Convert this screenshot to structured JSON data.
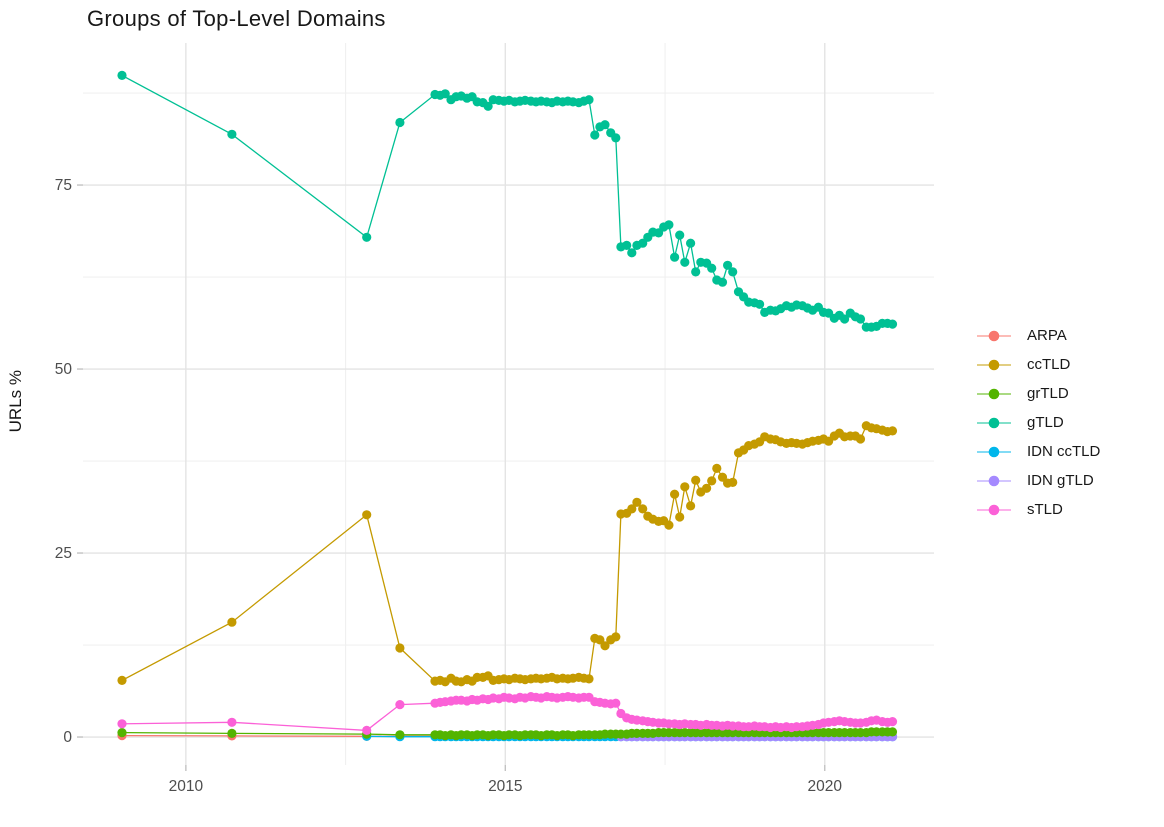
{
  "chart_data": {
    "type": "line",
    "title": "Groups of Top-Level Domains",
    "xlabel": "",
    "ylabel": "URLs %",
    "legend_position": "right",
    "grid": true,
    "xlim": [
      2008.39,
      2021.71
    ],
    "ylim": [
      -3.8,
      94.3
    ],
    "xticks": [
      2010,
      2015,
      2020
    ],
    "yticks": [
      0,
      25,
      50,
      75
    ],
    "x_minor": [
      2012.5,
      2017.5
    ],
    "y_minor": [
      12.5,
      37.5,
      62.5,
      87.5
    ],
    "x": [
      2009.0,
      2010.72,
      2012.83,
      2013.35,
      2013.9,
      2013.98,
      2014.06,
      2014.15,
      2014.23,
      2014.31,
      2014.4,
      2014.48,
      2014.56,
      2014.65,
      2014.73,
      2014.81,
      2014.9,
      2014.98,
      2015.06,
      2015.15,
      2015.23,
      2015.31,
      2015.4,
      2015.48,
      2015.56,
      2015.65,
      2015.73,
      2015.81,
      2015.9,
      2015.98,
      2016.06,
      2016.15,
      2016.23,
      2016.31,
      2016.4,
      2016.48,
      2016.56,
      2016.65,
      2016.73,
      2016.81,
      2016.9,
      2016.98,
      2017.06,
      2017.15,
      2017.23,
      2017.31,
      2017.4,
      2017.48,
      2017.56,
      2017.65,
      2017.73,
      2017.81,
      2017.9,
      2017.98,
      2018.06,
      2018.15,
      2018.23,
      2018.31,
      2018.4,
      2018.48,
      2018.56,
      2018.65,
      2018.73,
      2018.81,
      2018.9,
      2018.98,
      2019.06,
      2019.15,
      2019.23,
      2019.31,
      2019.4,
      2019.48,
      2019.56,
      2019.65,
      2019.73,
      2019.81,
      2019.9,
      2019.98,
      2020.06,
      2020.15,
      2020.23,
      2020.31,
      2020.4,
      2020.48,
      2020.56,
      2020.65,
      2020.73,
      2020.81,
      2020.9,
      2020.98,
      2021.06
    ],
    "series": [
      {
        "name": "ARPA",
        "color": "#F8766D",
        "values": [
          0.2,
          0.15,
          0.1,
          0.1,
          0.1,
          0.1,
          0.1,
          0.1,
          0.1,
          0.1,
          0.1,
          0.1,
          0.1,
          0.1,
          0.1,
          0.1,
          0.1,
          0.1,
          0.1,
          0.1,
          0.1,
          0.1,
          0.1,
          0.1,
          0.1,
          0.1,
          0.1,
          0.1,
          0.1,
          0.1,
          0.1,
          0.1,
          0.1,
          0.1,
          0.1,
          0.1,
          0.1,
          0.1,
          0.1,
          0.1,
          0.1,
          0.1,
          0.1,
          0.1,
          0.1,
          0.1,
          0.1,
          0.1,
          0.1,
          0.1,
          0.1,
          0.1,
          0.1,
          0.1,
          0.1,
          0.1,
          0.1,
          0.1,
          0.1,
          0.1,
          0.1,
          0.1,
          0.1,
          0.1,
          0.1,
          0.1,
          0.1,
          0.1,
          0.1,
          0.1,
          0.1,
          0.1,
          0.1,
          0.1,
          0.1,
          0.1,
          0.1,
          0.1,
          0.1,
          0.1,
          0.1,
          0.1,
          0.1,
          0.1,
          0.1,
          0.1,
          0.1,
          0.1,
          0.1,
          0.1,
          0.1
        ]
      },
      {
        "name": "ccTLD",
        "color": "#C49A00",
        "values": [
          7.7,
          15.6,
          30.2,
          12.1,
          7.6,
          7.7,
          7.5,
          8.0,
          7.6,
          7.5,
          7.8,
          7.6,
          8.1,
          8.1,
          8.3,
          7.7,
          7.8,
          7.9,
          7.8,
          8.0,
          7.9,
          7.8,
          7.9,
          8.0,
          7.9,
          8.0,
          8.1,
          7.9,
          8.0,
          7.9,
          8.0,
          8.1,
          8.0,
          7.9,
          13.4,
          13.2,
          12.4,
          13.2,
          13.6,
          30.3,
          30.4,
          31.0,
          31.9,
          31.0,
          30.0,
          29.6,
          29.3,
          29.4,
          28.8,
          33.0,
          29.9,
          34.0,
          31.4,
          34.9,
          33.3,
          33.8,
          34.8,
          36.5,
          35.3,
          34.5,
          34.6,
          38.6,
          39.0,
          39.6,
          39.8,
          40.1,
          40.8,
          40.5,
          40.4,
          40.1,
          39.9,
          40.0,
          39.9,
          39.8,
          40.0,
          40.2,
          40.3,
          40.5,
          40.2,
          40.9,
          41.3,
          40.8,
          40.9,
          40.9,
          40.5,
          42.3,
          42.0,
          41.9,
          41.7,
          41.5,
          41.6
        ]
      },
      {
        "name": "grTLD",
        "color": "#53B400",
        "values": [
          0.6,
          0.5,
          0.4,
          0.3,
          0.3,
          0.3,
          0.2,
          0.3,
          0.2,
          0.3,
          0.3,
          0.2,
          0.3,
          0.3,
          0.2,
          0.3,
          0.3,
          0.2,
          0.3,
          0.3,
          0.2,
          0.3,
          0.3,
          0.3,
          0.2,
          0.3,
          0.3,
          0.2,
          0.3,
          0.3,
          0.2,
          0.3,
          0.3,
          0.3,
          0.3,
          0.3,
          0.4,
          0.4,
          0.4,
          0.4,
          0.4,
          0.5,
          0.5,
          0.5,
          0.5,
          0.5,
          0.6,
          0.6,
          0.6,
          0.6,
          0.6,
          0.6,
          0.6,
          0.6,
          0.6,
          0.6,
          0.6,
          0.6,
          0.6,
          0.6,
          0.6,
          0.6,
          0.6,
          0.6,
          0.6,
          0.6,
          0.6,
          0.6,
          0.6,
          0.6,
          0.6,
          0.6,
          0.6,
          0.6,
          0.6,
          0.6,
          0.6,
          0.6,
          0.6,
          0.6,
          0.6,
          0.6,
          0.6,
          0.6,
          0.6,
          0.6,
          0.7,
          0.7,
          0.7,
          0.7,
          0.7
        ]
      },
      {
        "name": "gTLD",
        "color": "#00C094",
        "values": [
          89.9,
          81.9,
          67.9,
          83.5,
          87.3,
          87.2,
          87.4,
          86.6,
          87.0,
          87.1,
          86.8,
          87.0,
          86.3,
          86.2,
          85.7,
          86.6,
          86.5,
          86.4,
          86.5,
          86.3,
          86.4,
          86.5,
          86.4,
          86.3,
          86.4,
          86.3,
          86.2,
          86.4,
          86.3,
          86.4,
          86.3,
          86.2,
          86.4,
          86.6,
          81.8,
          82.9,
          83.2,
          82.1,
          81.4,
          66.6,
          66.8,
          65.8,
          66.8,
          67.1,
          67.9,
          68.6,
          68.5,
          69.3,
          69.6,
          65.2,
          68.2,
          64.5,
          67.1,
          63.2,
          64.5,
          64.4,
          63.7,
          62.1,
          61.8,
          64.1,
          63.2,
          60.5,
          59.8,
          59.1,
          59.0,
          58.8,
          57.7,
          58.0,
          57.9,
          58.2,
          58.6,
          58.4,
          58.7,
          58.6,
          58.3,
          58.0,
          58.4,
          57.7,
          57.6,
          56.9,
          57.3,
          56.8,
          57.6,
          57.1,
          56.8,
          55.7,
          55.7,
          55.8,
          56.2,
          56.2,
          56.1
        ]
      },
      {
        "name": "IDN ccTLD",
        "color": "#00B6EB",
        "values": [
          null,
          null,
          0.1,
          0.05,
          0.05,
          0.05,
          0.05,
          0.05,
          0.05,
          0.05,
          0.05,
          0.05,
          0.05,
          0.05,
          0.05,
          0.05,
          0.05,
          0.05,
          0.05,
          0.05,
          0.05,
          0.05,
          0.05,
          0.05,
          0.05,
          0.05,
          0.05,
          0.05,
          0.05,
          0.05,
          0.05,
          0.05,
          0.05,
          0.05,
          0.05,
          0.05,
          0.05,
          0.05,
          0.05,
          0.05,
          0.05,
          0.05,
          0.05,
          0.05,
          0.05,
          0.05,
          0.05,
          0.05,
          0.05,
          0.05,
          0.05,
          0.05,
          0.05,
          0.05,
          0.05,
          0.05,
          0.05,
          0.05,
          0.05,
          0.05,
          0.05,
          0.05,
          0.05,
          0.05,
          0.05,
          0.05,
          0.05,
          0.05,
          0.05,
          0.05,
          0.05,
          0.05,
          0.05,
          0.05,
          0.05,
          0.05,
          0.05,
          0.05,
          0.05,
          0.05,
          0.05,
          0.05,
          0.05,
          0.05,
          0.05,
          0.05,
          0.05,
          0.05,
          0.05,
          0.05,
          0.05
        ]
      },
      {
        "name": "IDN gTLD",
        "color": "#A58AFF",
        "values": [
          null,
          null,
          null,
          null,
          null,
          null,
          null,
          null,
          null,
          null,
          null,
          null,
          null,
          null,
          null,
          null,
          null,
          null,
          null,
          null,
          null,
          null,
          null,
          null,
          null,
          null,
          null,
          null,
          null,
          null,
          null,
          null,
          null,
          null,
          null,
          null,
          null,
          null,
          null,
          0.05,
          0.05,
          0.05,
          0.05,
          0.05,
          0.05,
          0.05,
          0.05,
          0.05,
          0.05,
          0.05,
          0.05,
          0.05,
          0.05,
          0.05,
          0.05,
          0.05,
          0.05,
          0.05,
          0.05,
          0.05,
          0.05,
          0.05,
          0.05,
          0.05,
          0.05,
          0.05,
          0.05,
          0.05,
          0.05,
          0.05,
          0.05,
          0.05,
          0.05,
          0.05,
          0.05,
          0.05,
          0.05,
          0.05,
          0.05,
          0.05,
          0.05,
          0.05,
          0.05,
          0.05,
          0.05,
          0.05,
          0.05,
          0.05,
          0.05,
          0.05,
          0.05
        ]
      },
      {
        "name": "sTLD",
        "color": "#FB61D7",
        "values": [
          1.8,
          2.0,
          0.9,
          4.4,
          4.6,
          4.7,
          4.8,
          4.9,
          5.0,
          5.0,
          4.9,
          5.1,
          5.0,
          5.2,
          5.1,
          5.3,
          5.2,
          5.4,
          5.3,
          5.2,
          5.4,
          5.3,
          5.5,
          5.4,
          5.3,
          5.5,
          5.4,
          5.3,
          5.4,
          5.5,
          5.4,
          5.3,
          5.4,
          5.4,
          4.8,
          4.7,
          4.6,
          4.5,
          4.6,
          3.2,
          2.6,
          2.4,
          2.3,
          2.2,
          2.1,
          2.0,
          1.9,
          1.9,
          1.8,
          1.8,
          1.7,
          1.8,
          1.7,
          1.7,
          1.6,
          1.7,
          1.6,
          1.6,
          1.5,
          1.6,
          1.5,
          1.5,
          1.4,
          1.4,
          1.5,
          1.4,
          1.4,
          1.3,
          1.4,
          1.3,
          1.4,
          1.3,
          1.4,
          1.4,
          1.5,
          1.6,
          1.7,
          1.9,
          2.0,
          2.1,
          2.2,
          2.1,
          2.0,
          1.9,
          1.9,
          2.0,
          2.2,
          2.3,
          2.1,
          2.0,
          2.1
        ]
      }
    ],
    "draw_order": [
      "ARPA",
      "IDN ccTLD",
      "IDN gTLD",
      "ccTLD",
      "gTLD",
      "grTLD",
      "sTLD"
    ],
    "style": {
      "grid_major_color": "#E4E4E4",
      "grid_minor_color": "#F0F0F0",
      "tick_color": "#C2C2C2",
      "tick_label_color": "#4D4D4D",
      "text_color": "#181818",
      "background": "#FFFFFF"
    }
  }
}
